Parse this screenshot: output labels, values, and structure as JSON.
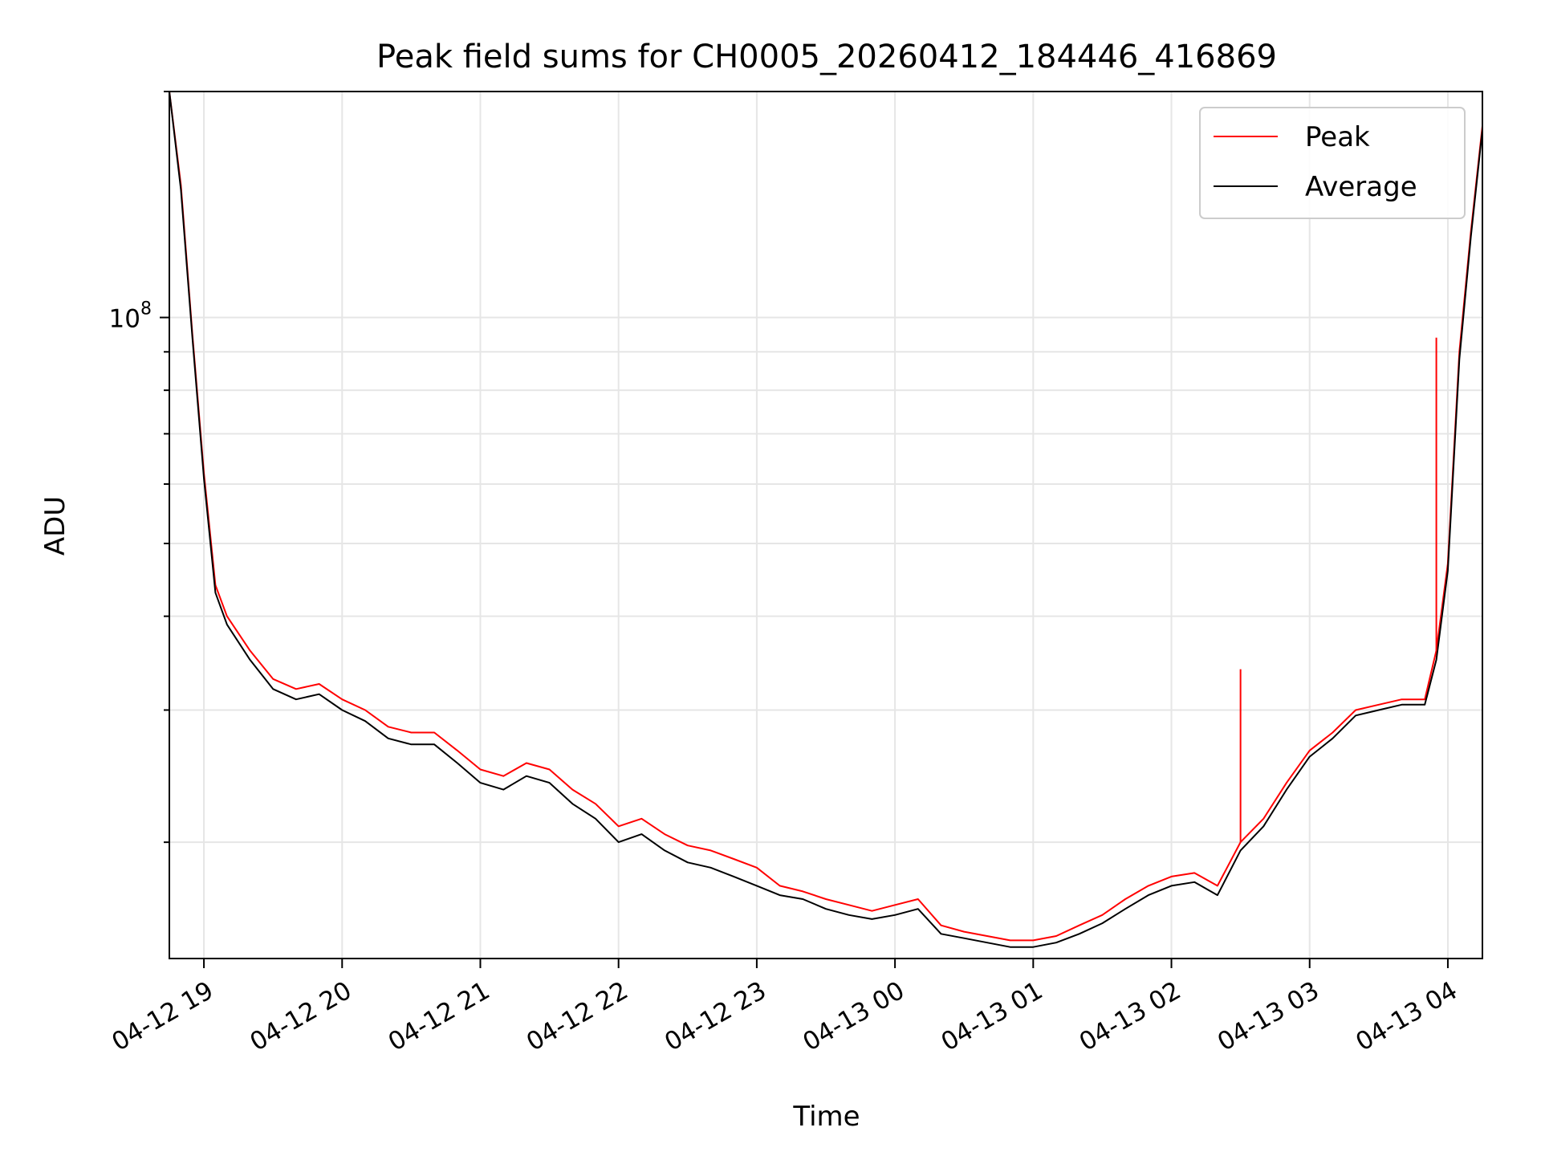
{
  "chart_data": {
    "type": "line",
    "title": "Peak field sums for CH0005_20260412_184446_416869",
    "xlabel": "Time",
    "ylabel": "ADU",
    "y_scale": "log",
    "x_range": [
      "04-12 18:45",
      "04-13 04:15"
    ],
    "y_range": [
      14000000,
      200000000
    ],
    "grid": true,
    "legend_position": "top-right",
    "x_ticks": [
      "04-12 19",
      "04-12 20",
      "04-12 21",
      "04-12 22",
      "04-12 23",
      "04-13 00",
      "04-13 01",
      "04-13 02",
      "04-13 03",
      "04-13 04"
    ],
    "y_tick_label": {
      "base": "10",
      "exponent": "8"
    },
    "x": [
      "04-12 18:45",
      "04-12 18:50",
      "04-12 18:55",
      "04-12 19:00",
      "04-12 19:05",
      "04-12 19:10",
      "04-12 19:20",
      "04-12 19:30",
      "04-12 19:40",
      "04-12 19:50",
      "04-12 20:00",
      "04-12 20:10",
      "04-12 20:20",
      "04-12 20:30",
      "04-12 20:40",
      "04-12 20:50",
      "04-12 21:00",
      "04-12 21:10",
      "04-12 21:20",
      "04-12 21:30",
      "04-12 21:40",
      "04-12 21:50",
      "04-12 22:00",
      "04-12 22:10",
      "04-12 22:20",
      "04-12 22:30",
      "04-12 22:40",
      "04-12 22:50",
      "04-12 23:00",
      "04-12 23:10",
      "04-12 23:20",
      "04-12 23:30",
      "04-12 23:40",
      "04-12 23:50",
      "04-13 00:00",
      "04-13 00:10",
      "04-13 00:20",
      "04-13 00:30",
      "04-13 00:40",
      "04-13 00:50",
      "04-13 01:00",
      "04-13 01:10",
      "04-13 01:20",
      "04-13 01:30",
      "04-13 01:40",
      "04-13 01:50",
      "04-13 02:00",
      "04-13 02:10",
      "04-13 02:20",
      "04-13 02:30",
      "04-13 02:40",
      "04-13 02:50",
      "04-13 03:00",
      "04-13 03:10",
      "04-13 03:20",
      "04-13 03:30",
      "04-13 03:40",
      "04-13 03:50",
      "04-13 03:55",
      "04-13 04:00",
      "04-13 04:05",
      "04-13 04:10",
      "04-13 04:15"
    ],
    "series": [
      {
        "name": "Peak",
        "color": "#ff0000",
        "values": [
          200000000,
          150000000,
          95000000,
          62000000,
          44000000,
          40000000,
          36000000,
          33000000,
          32000000,
          32500000,
          31000000,
          30000000,
          28500000,
          28000000,
          28000000,
          26500000,
          25000000,
          24500000,
          25500000,
          25000000,
          23500000,
          22500000,
          21000000,
          21500000,
          20500000,
          19800000,
          19500000,
          19000000,
          18500000,
          17500000,
          17200000,
          16800000,
          16500000,
          16200000,
          16500000,
          16800000,
          15500000,
          15200000,
          15000000,
          14800000,
          14800000,
          15000000,
          15500000,
          16000000,
          16800000,
          17500000,
          18000000,
          18200000,
          17500000,
          20000000,
          21500000,
          24000000,
          26500000,
          28000000,
          30000000,
          30500000,
          31000000,
          31000000,
          36000000,
          47000000,
          90000000,
          130000000,
          180000000
        ]
      },
      {
        "name": "Average",
        "color": "#000000",
        "values": [
          200000000,
          148000000,
          94000000,
          61000000,
          43000000,
          39000000,
          35000000,
          32000000,
          31000000,
          31500000,
          30000000,
          29000000,
          27500000,
          27000000,
          27000000,
          25500000,
          24000000,
          23500000,
          24500000,
          24000000,
          22500000,
          21500000,
          20000000,
          20500000,
          19500000,
          18800000,
          18500000,
          18000000,
          17500000,
          17000000,
          16800000,
          16300000,
          16000000,
          15800000,
          16000000,
          16300000,
          15100000,
          14900000,
          14700000,
          14500000,
          14500000,
          14700000,
          15100000,
          15600000,
          16300000,
          17000000,
          17500000,
          17700000,
          17000000,
          19500000,
          21000000,
          23500000,
          26000000,
          27500000,
          29500000,
          30000000,
          30500000,
          30500000,
          35000000,
          46000000,
          88000000,
          128000000,
          178000000
        ]
      }
    ],
    "spikes": [
      {
        "series": "Peak",
        "x": "04-13 03:55",
        "y": 94000000
      },
      {
        "series": "Peak",
        "x": "04-13 02:30",
        "y": 34000000
      }
    ]
  }
}
